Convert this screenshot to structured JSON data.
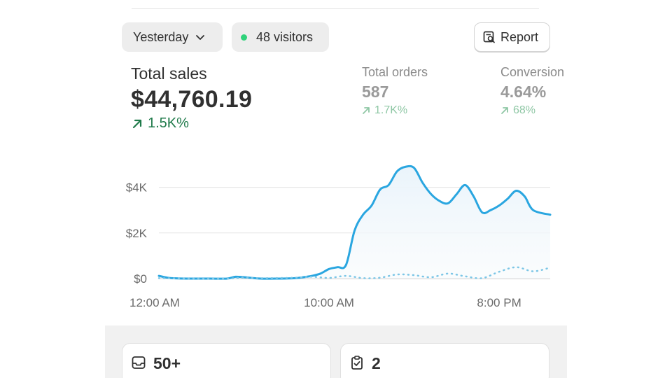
{
  "toolbar": {
    "date_label": "Yesterday",
    "visitors_label": "48 visitors",
    "report_label": "Report"
  },
  "metrics": {
    "total_sales": {
      "label": "Total sales",
      "value": "$44,760.19",
      "delta": "1.5K%"
    },
    "total_orders": {
      "label": "Total orders",
      "value": "587",
      "delta": "1.7K%"
    },
    "conversion": {
      "label": "Conversion",
      "value": "4.64%",
      "delta": "68%"
    }
  },
  "colors": {
    "primary_line": "#2aa6e0",
    "positive": "#1f7a4a",
    "positive_muted": "#8fc7a5",
    "online_dot": "#2fd27a"
  },
  "chart_data": {
    "type": "line",
    "ylim": [
      0,
      5000
    ],
    "y_ticks": [
      0,
      2000,
      4000
    ],
    "y_tick_labels": [
      "$0",
      "$2K",
      "$4K"
    ],
    "x_range": [
      0,
      23
    ],
    "x_ticks": [
      0,
      10,
      20
    ],
    "x_tick_labels": [
      "12:00 AM",
      "10:00 AM",
      "8:00 PM"
    ],
    "grid": true,
    "series": [
      {
        "style": "solid",
        "points": [
          [
            0,
            120
          ],
          [
            0.5,
            40
          ],
          [
            1,
            10
          ],
          [
            2,
            0
          ],
          [
            3,
            0
          ],
          [
            4,
            0
          ],
          [
            4.5,
            80
          ],
          [
            5,
            60
          ],
          [
            6,
            0
          ],
          [
            7,
            0
          ],
          [
            8,
            20
          ],
          [
            8.5,
            60
          ],
          [
            9,
            120
          ],
          [
            9.5,
            220
          ],
          [
            10,
            420
          ],
          [
            10.5,
            500
          ],
          [
            11,
            600
          ],
          [
            11.5,
            2100
          ],
          [
            12,
            2800
          ],
          [
            12.5,
            3200
          ],
          [
            13,
            3900
          ],
          [
            13.5,
            4100
          ],
          [
            14,
            4700
          ],
          [
            14.5,
            4900
          ],
          [
            15,
            4850
          ],
          [
            15.5,
            4200
          ],
          [
            16,
            3700
          ],
          [
            16.5,
            3400
          ],
          [
            17,
            3300
          ],
          [
            17.5,
            3700
          ],
          [
            18,
            4100
          ],
          [
            18.5,
            3600
          ],
          [
            19,
            2900
          ],
          [
            19.5,
            3000
          ],
          [
            20,
            3200
          ],
          [
            20.5,
            3500
          ],
          [
            21,
            3850
          ],
          [
            21.5,
            3600
          ],
          [
            22,
            3000
          ],
          [
            23,
            2800
          ]
        ]
      },
      {
        "style": "dotted",
        "points": [
          [
            0,
            20
          ],
          [
            2,
            0
          ],
          [
            4,
            0
          ],
          [
            5,
            40
          ],
          [
            6,
            20
          ],
          [
            8,
            40
          ],
          [
            9,
            80
          ],
          [
            10,
            30
          ],
          [
            11,
            120
          ],
          [
            12,
            20
          ],
          [
            13,
            40
          ],
          [
            14,
            180
          ],
          [
            15,
            150
          ],
          [
            16,
            60
          ],
          [
            17,
            220
          ],
          [
            18,
            100
          ],
          [
            19,
            20
          ],
          [
            20,
            300
          ],
          [
            21,
            500
          ],
          [
            22,
            320
          ],
          [
            23,
            480
          ]
        ]
      }
    ]
  },
  "cards": [
    {
      "value": "50+",
      "icon": "inbox-icon"
    },
    {
      "value": "2",
      "icon": "clipboard-check-icon"
    }
  ]
}
